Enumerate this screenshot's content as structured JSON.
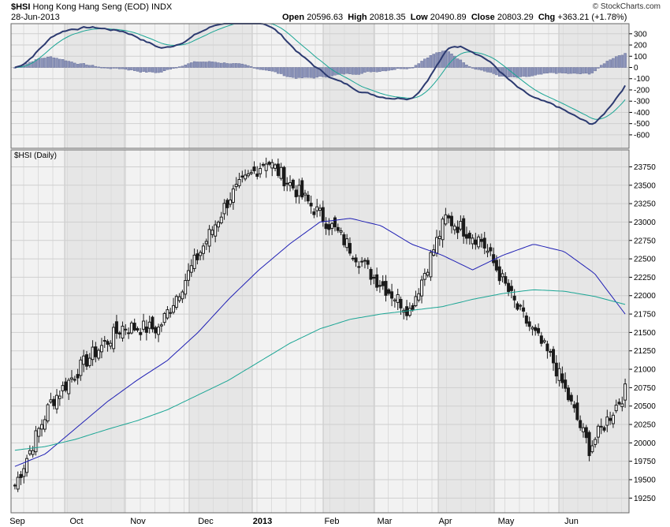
{
  "header": {
    "symbol": "$HSI",
    "name": "Hong Kong Hang Seng (EOD)",
    "exchange": "INDX",
    "date": "28-Jun-2013",
    "open_label": "Open",
    "open_value": "20596.63",
    "high_label": "High",
    "high_value": "20818.35",
    "low_label": "Low",
    "low_value": "20490.89",
    "close_label": "Close",
    "close_value": "20803.29",
    "chg_label": "Chg",
    "chg_value": "+363.21 (+1.78%)",
    "copyright": "© StockCharts.com"
  },
  "colors": {
    "candle": "#1a1a1a",
    "ma_short": "#1f1fb4",
    "ma_long": "#1aa594",
    "macd_line": "#2c3a70",
    "macd_signal": "#1aa594",
    "histogram": "#8b93b8",
    "shade": "#e6e6e6",
    "panel_bg": "#f2f2f2",
    "grid": "#cfcfcf"
  },
  "chart_data": [
    {
      "type": "line",
      "panel": "macd",
      "y_ticks": [
        "300",
        "200",
        "100",
        "0",
        "-100",
        "-200",
        "-300",
        "-400",
        "-500",
        "-600"
      ],
      "ylim": [
        -720,
        390
      ],
      "series": []
    },
    {
      "type": "candlestick",
      "panel": "price",
      "title": "$HSI (Daily)",
      "ylim": [
        19050,
        23980
      ],
      "y_ticks": [
        "23750",
        "23500",
        "23250",
        "23000",
        "22750",
        "22500",
        "22250",
        "22000",
        "21750",
        "21500",
        "21250",
        "21000",
        "20750",
        "20500",
        "20250",
        "20000",
        "19750",
        "19500",
        "19250"
      ],
      "x_ticks": [
        "Sep",
        "Oct",
        "Nov",
        "Dec",
        "2013",
        "Feb",
        "Mar",
        "Apr",
        "May",
        "Jun"
      ],
      "anchors": [
        [
          19400,
          19450
        ],
        [
          20400,
          20700
        ],
        [
          21000,
          21250
        ],
        [
          21450,
          21700
        ],
        [
          21200,
          21900
        ],
        [
          22300,
          22600
        ],
        [
          23200,
          23500
        ],
        [
          23800,
          23900
        ],
        [
          23200,
          23500
        ],
        [
          22500,
          23200
        ],
        [
          22000,
          22500
        ],
        [
          21600,
          22000
        ],
        [
          22800,
          23300
        ],
        [
          22500,
          23000
        ],
        [
          21750,
          21900
        ],
        [
          21000,
          21200
        ],
        [
          20000,
          19850
        ],
        [
          20600,
          20800
        ]
      ],
      "ma_short": [
        19680,
        19850,
        20200,
        20550,
        20850,
        21120,
        21500,
        21950,
        22350,
        22700,
        23000,
        23050,
        22950,
        22700,
        22550,
        22350,
        22550,
        22700,
        22600,
        22300,
        21750
      ],
      "ma_long": [
        19900,
        19950,
        20050,
        20180,
        20300,
        20450,
        20650,
        20850,
        21100,
        21350,
        21550,
        21680,
        21750,
        21800,
        21850,
        21950,
        22030,
        22080,
        22060,
        21990,
        21880
      ]
    }
  ]
}
